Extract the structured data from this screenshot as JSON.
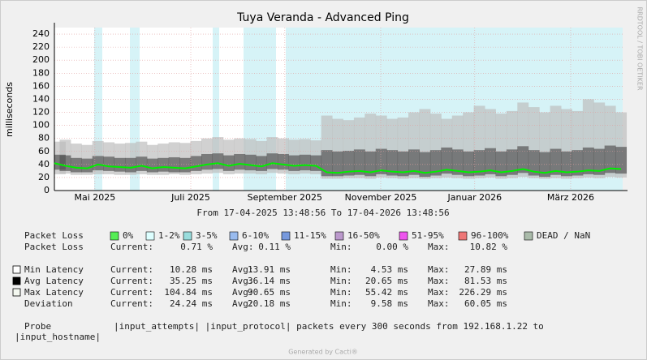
{
  "chart_data": {
    "type": "line",
    "title": "Tuya Veranda - Advanced Ping",
    "y_label": "milliseconds",
    "side_label": "RRDTOOL / TOBI OETIKER",
    "time_range": "From 17-04-2025 13:48:56 To 17-04-2026 13:48:56",
    "footer": "Generated by Cacti®",
    "grid": true,
    "xlim": [
      0,
      365
    ],
    "xticks": [
      {
        "value": 26,
        "label": "Mai 2025"
      },
      {
        "value": 87.6,
        "label": "Juli 2025"
      },
      {
        "value": 148,
        "label": "September 2025"
      },
      {
        "value": 209.6,
        "label": "November 2025"
      },
      {
        "value": 270,
        "label": "Januar 2026"
      },
      {
        "value": 331.6,
        "label": "März 2026"
      }
    ],
    "ylim": [
      0,
      250
    ],
    "yticks": [
      0,
      20,
      40,
      60,
      80,
      100,
      120,
      140,
      160,
      180,
      200,
      220,
      240
    ],
    "x": [
      0,
      7,
      14,
      21,
      28,
      35,
      42,
      49,
      56,
      63,
      70,
      77,
      84,
      91,
      98,
      105,
      112,
      119,
      126,
      133,
      140,
      147,
      154,
      161,
      168,
      175,
      182,
      189,
      196,
      203,
      210,
      217,
      224,
      231,
      238,
      245,
      252,
      259,
      266,
      273,
      280,
      287,
      294,
      301,
      308,
      315,
      322,
      329,
      336,
      343,
      350,
      357,
      364
    ],
    "bands": [
      {
        "color": "#bdbdbd",
        "upper": [
          75,
          78,
          72,
          70,
          76,
          74,
          72,
          73,
          75,
          70,
          72,
          74,
          73,
          76,
          80,
          82,
          78,
          80,
          79,
          76,
          82,
          80,
          78,
          79,
          77,
          115,
          110,
          108,
          112,
          118,
          115,
          110,
          112,
          120,
          125,
          118,
          110,
          115,
          120,
          130,
          125,
          118,
          122,
          135,
          128,
          120,
          130,
          125,
          122,
          140,
          135,
          130,
          120
        ],
        "lower": [
          25,
          26,
          24,
          24,
          25,
          25,
          24,
          24,
          25,
          24,
          24,
          25,
          24,
          25,
          26,
          27,
          25,
          26,
          26,
          25,
          27,
          26,
          25,
          26,
          25,
          18,
          18,
          19,
          19,
          18,
          20,
          19,
          18,
          19,
          18,
          19,
          20,
          19,
          18,
          19,
          20,
          18,
          19,
          21,
          19,
          18,
          19,
          18,
          19,
          20,
          19,
          21,
          20
        ]
      },
      {
        "color": "#555555",
        "upper": [
          55,
          54,
          50,
          49,
          53,
          52,
          50,
          50,
          52,
          49,
          50,
          51,
          50,
          53,
          56,
          57,
          54,
          56,
          55,
          53,
          57,
          56,
          54,
          55,
          54,
          62,
          60,
          61,
          63,
          60,
          64,
          62,
          60,
          63,
          59,
          62,
          66,
          63,
          60,
          62,
          65,
          60,
          63,
          68,
          62,
          59,
          64,
          60,
          62,
          66,
          64,
          69,
          67
        ],
        "lower": [
          32,
          30,
          28,
          28,
          31,
          30,
          29,
          28,
          30,
          28,
          29,
          28,
          28,
          30,
          32,
          33,
          30,
          32,
          31,
          30,
          33,
          32,
          30,
          31,
          30,
          22,
          22,
          23,
          24,
          22,
          25,
          23,
          22,
          24,
          21,
          23,
          26,
          24,
          22,
          23,
          25,
          22,
          24,
          27,
          23,
          21,
          24,
          22,
          23,
          25,
          24,
          27,
          26
        ]
      }
    ],
    "series": [
      {
        "name": "Avg Latency",
        "color": "#00ee00",
        "values": [
          42,
          38,
          35,
          34,
          40,
          37,
          36,
          35,
          38,
          34,
          36,
          35,
          34,
          37,
          40,
          42,
          38,
          41,
          39,
          37,
          42,
          40,
          38,
          39,
          38,
          28,
          27,
          29,
          30,
          28,
          31,
          29,
          28,
          30,
          27,
          29,
          32,
          30,
          28,
          29,
          31,
          28,
          30,
          33,
          29,
          27,
          30,
          28,
          29,
          31,
          30,
          34,
          33
        ]
      }
    ],
    "loss_legend": {
      "label": "Packet Loss",
      "items": [
        {
          "name": "0%",
          "color": "#55ee55"
        },
        {
          "name": "1-2%",
          "color": "#ddffff"
        },
        {
          "name": "3-5%",
          "color": "#99dddd"
        },
        {
          "name": "6-10%",
          "color": "#99bbee"
        },
        {
          "name": "11-15%",
          "color": "#7799dd"
        },
        {
          "name": "16-50%",
          "color": "#bb99cc"
        },
        {
          "name": "51-95%",
          "color": "#ee55ee"
        },
        {
          "name": "96-100%",
          "color": "#ee7777"
        },
        {
          "name": "DEAD / NaN",
          "color": "#aabbaa"
        }
      ]
    },
    "stats": {
      "headers": [
        "Current:",
        "Avg:",
        "Min:",
        "Max:"
      ],
      "rows": [
        {
          "name": "Packet Loss",
          "values": [
            "0.71 %",
            "0.11 %",
            "0.00 %",
            "10.82 %"
          ]
        },
        {
          "name": "Min Latency",
          "swatch": "#ffffff",
          "values": [
            "10.28 ms",
            "13.91 ms",
            "4.53 ms",
            "27.89 ms"
          ]
        },
        {
          "name": "Avg Latency",
          "swatch": "#000000",
          "values": [
            "35.25 ms",
            "36.14 ms",
            "20.65 ms",
            "81.53 ms"
          ]
        },
        {
          "name": "Max Latency",
          "swatch": "#f4f8f0",
          "values": [
            "104.84 ms",
            "90.65 ms",
            "55.42 ms",
            "226.29 ms"
          ]
        },
        {
          "name": "Deviation",
          "values": [
            "24.24 ms",
            "20.18 ms",
            "9.58 ms",
            "60.05 ms"
          ]
        }
      ]
    },
    "probe": {
      "label": "Probe",
      "text": "|input_attempts| |input_protocol| packets every 300 seconds from 192.168.1.22 to",
      "text2": "|input_hostname|"
    }
  }
}
